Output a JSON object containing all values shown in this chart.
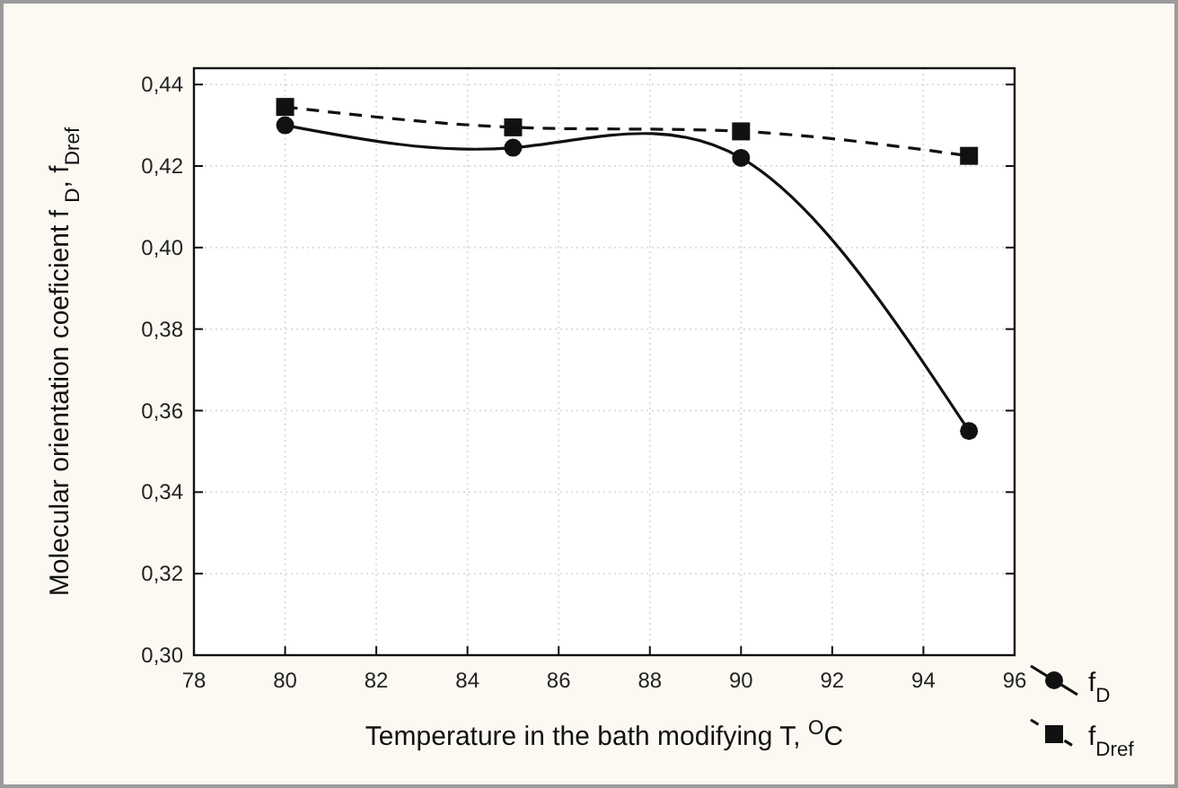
{
  "chart_data": {
    "type": "line",
    "xlabel": "Temperature in the bath modifying T,  $^{O}$C",
    "ylabel": "Molecular orientation coeficient f $_{D}$, f$_{Dref}$",
    "xlim": [
      78,
      96
    ],
    "xticks": [
      78,
      80,
      82,
      84,
      86,
      88,
      90,
      92,
      94,
      96
    ],
    "ylim": [
      0.3,
      0.444
    ],
    "yticks": [
      {
        "value": 0.3,
        "label": "0,30"
      },
      {
        "value": 0.32,
        "label": "0,32"
      },
      {
        "value": 0.34,
        "label": "0,34"
      },
      {
        "value": 0.36,
        "label": "0,36"
      },
      {
        "value": 0.38,
        "label": "0,38"
      },
      {
        "value": 0.4,
        "label": "0,40"
      },
      {
        "value": 0.42,
        "label": "0,42"
      },
      {
        "value": 0.44,
        "label": "0,44"
      }
    ],
    "grid": true,
    "legend": "bottom right",
    "series": [
      {
        "name": "f$_{D}$",
        "color": "#111111",
        "x": [
          80,
          85,
          90,
          95
        ],
        "values": [
          0.43,
          0.4245,
          0.422,
          0.355
        ],
        "marker": "circle",
        "line_style": "solid"
      },
      {
        "name": "f$_{Dref}$",
        "color": "#111111",
        "x": [
          80,
          85,
          90,
          95
        ],
        "values": [
          0.4345,
          0.4295,
          0.4285,
          0.4225
        ],
        "marker": "square",
        "line_style": "dashed"
      }
    ]
  }
}
